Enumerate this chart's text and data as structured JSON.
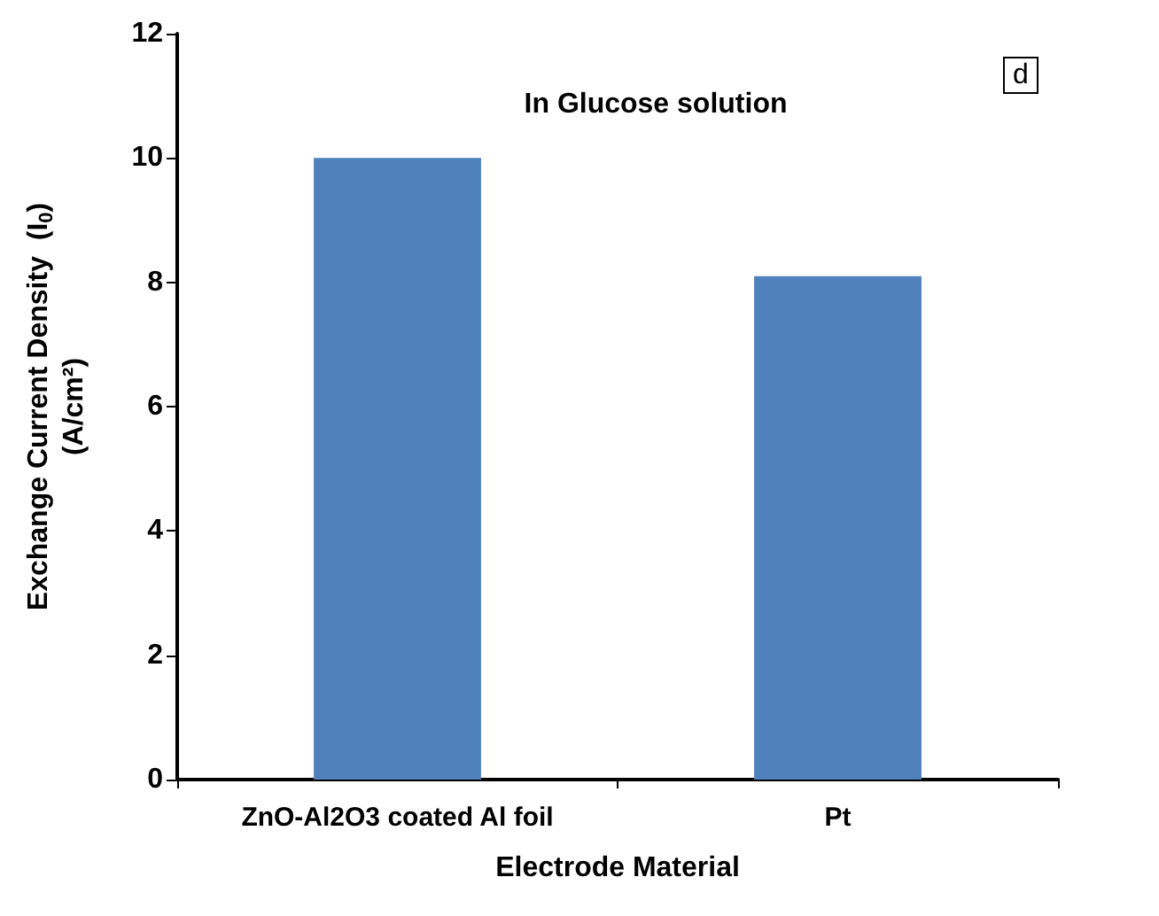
{
  "chart_data": {
    "type": "bar",
    "title": "In Glucose solution",
    "categories": [
      "ZnO-Al2O3 coated Al foil",
      "Pt"
    ],
    "values": [
      10.0,
      8.1
    ],
    "color": "#4f81bd",
    "xlabel": "Electrode Material",
    "ylabel": "Exchange Current Density  (I$_{0}$)\n(A/cm²)",
    "ylim": [
      0,
      12
    ],
    "yticks": [
      0,
      2,
      4,
      6,
      8,
      10,
      12
    ],
    "grid": false,
    "annotations": [
      "d"
    ]
  }
}
